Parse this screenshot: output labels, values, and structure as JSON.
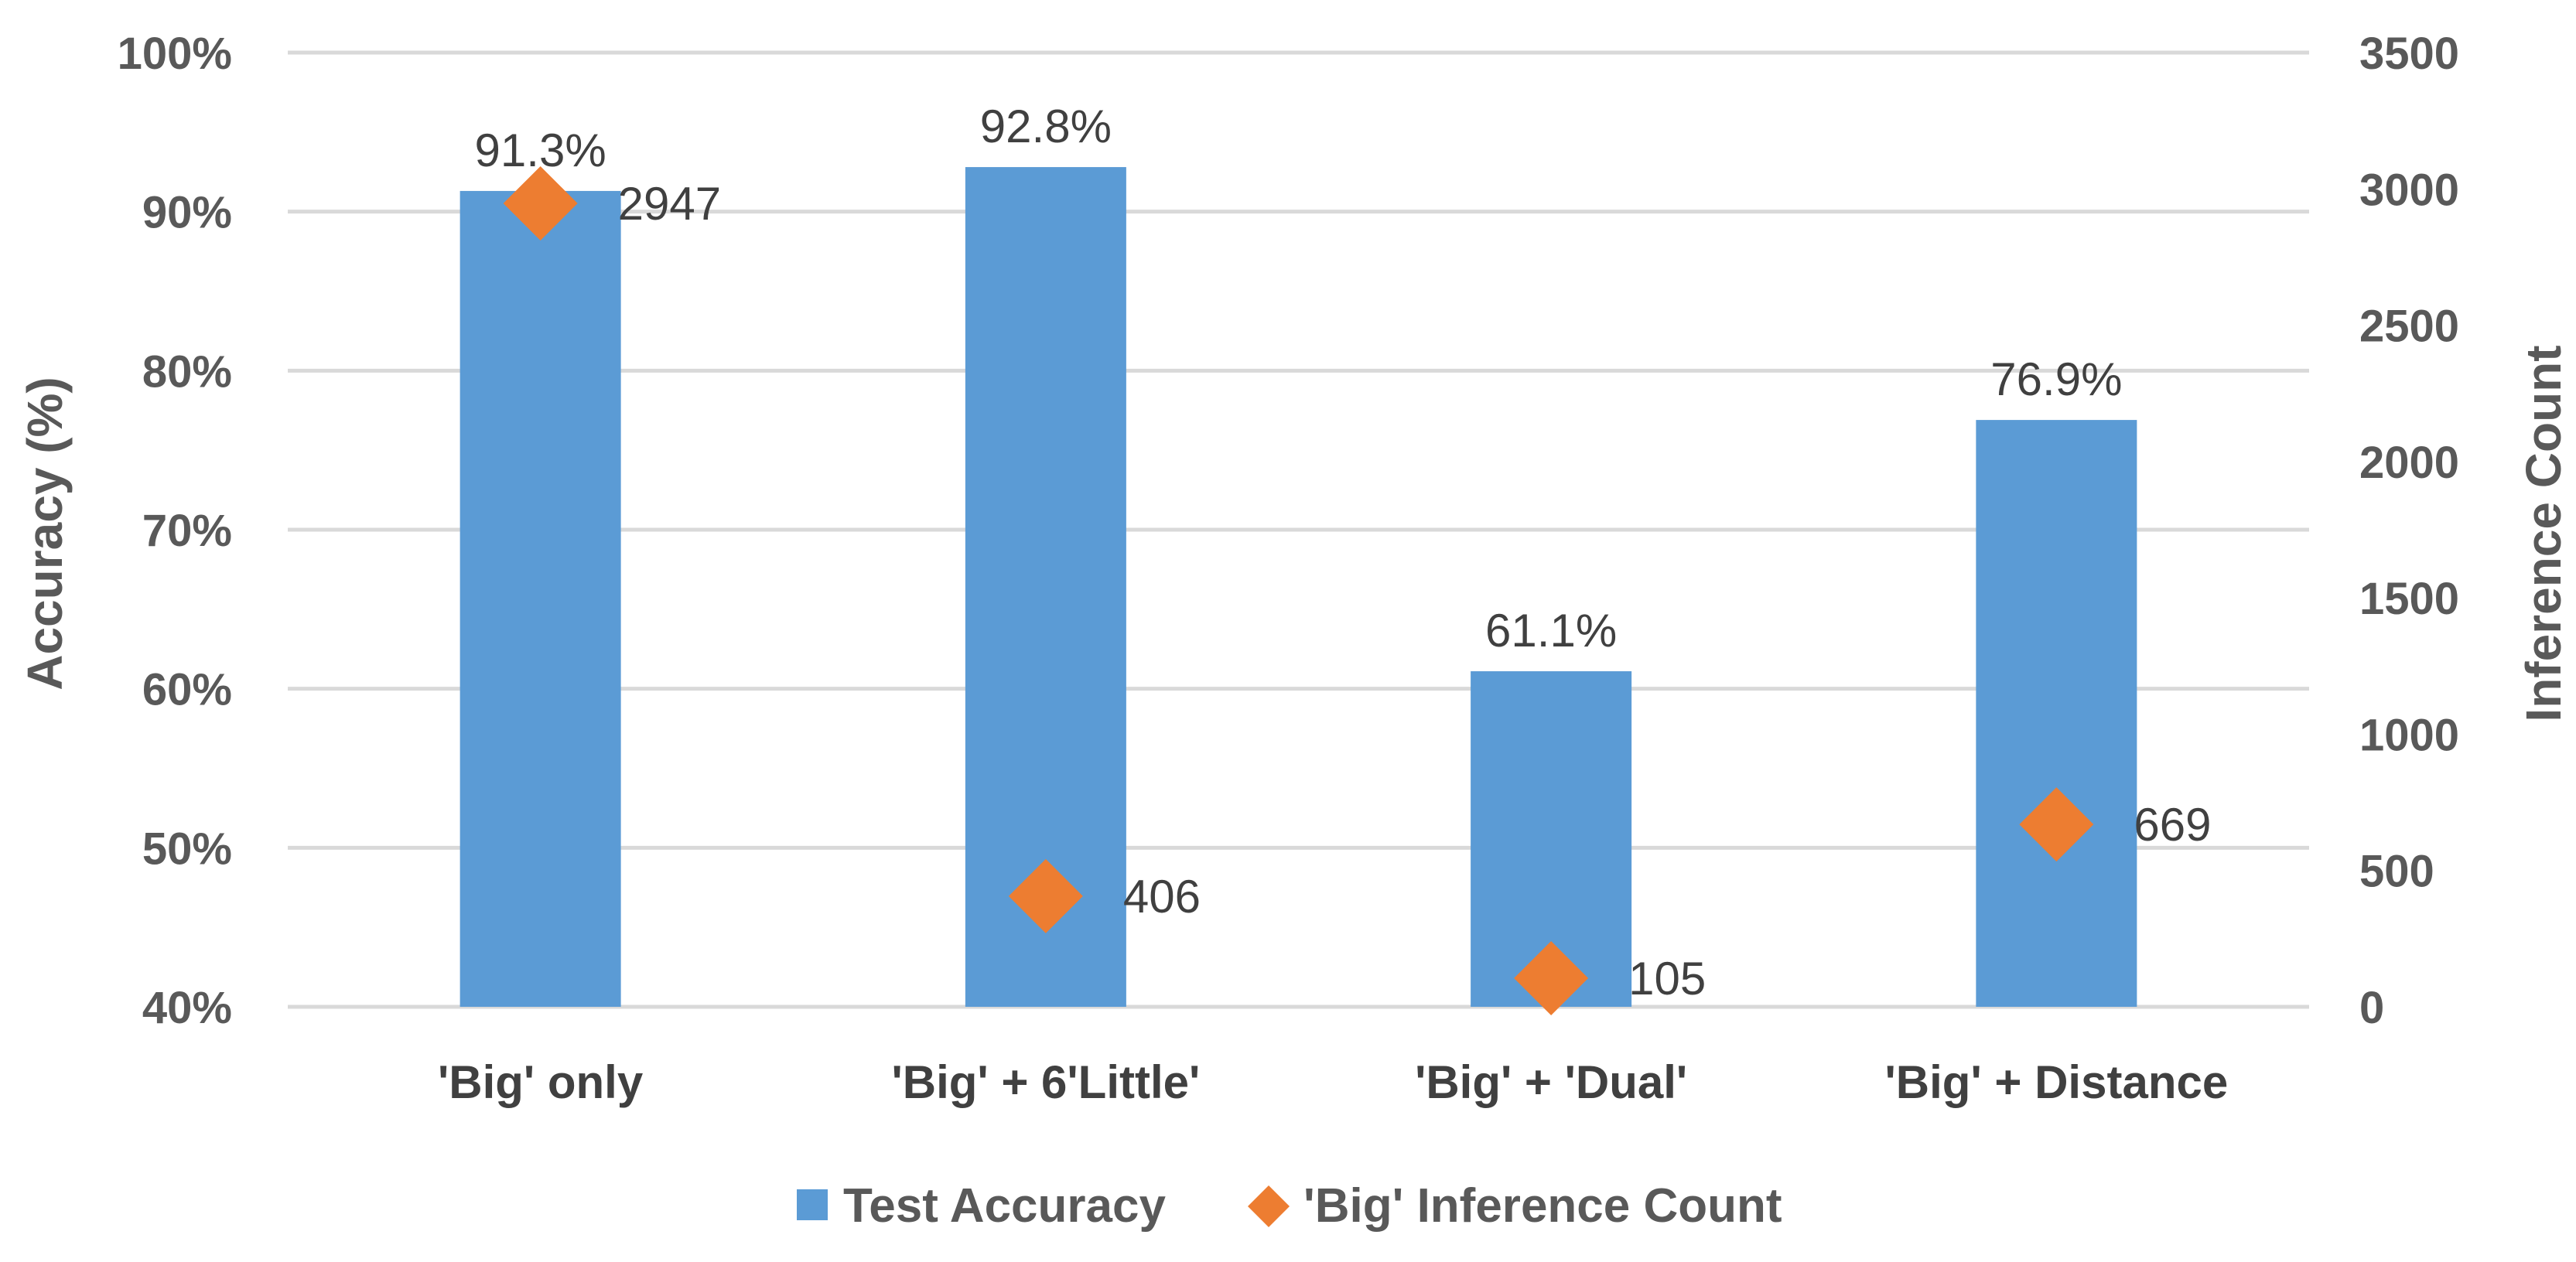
{
  "chart_data": {
    "type": "bar",
    "categories": [
      "'Big' only",
      "'Big' + 6'Little'",
      "'Big' + 'Dual'",
      "'Big' + Distance"
    ],
    "series": [
      {
        "name": "Test Accuracy",
        "kind": "bar",
        "axis": "left",
        "color": "#5b9bd5",
        "values": [
          91.3,
          92.8,
          61.1,
          76.9
        ],
        "labels": [
          "91.3%",
          "92.8%",
          "61.1%",
          "76.9%"
        ]
      },
      {
        "name": "'Big' Inference Count",
        "kind": "scatter",
        "marker": "diamond",
        "axis": "right",
        "color": "#ed7d31",
        "values": [
          2947,
          406,
          105,
          669
        ],
        "labels": [
          "2947",
          "406",
          "105",
          "669"
        ]
      }
    ],
    "ylabel": "Accuracy (%)",
    "y2label": "Inference Count",
    "ylim": [
      40,
      100
    ],
    "yticks": [
      "40%",
      "50%",
      "60%",
      "70%",
      "80%",
      "90%",
      "100%"
    ],
    "y2lim": [
      0,
      3500
    ],
    "y2ticks": [
      "0",
      "500",
      "1000",
      "1500",
      "2000",
      "2500",
      "3000",
      "3500"
    ],
    "grid": true,
    "legend_position": "bottom"
  }
}
